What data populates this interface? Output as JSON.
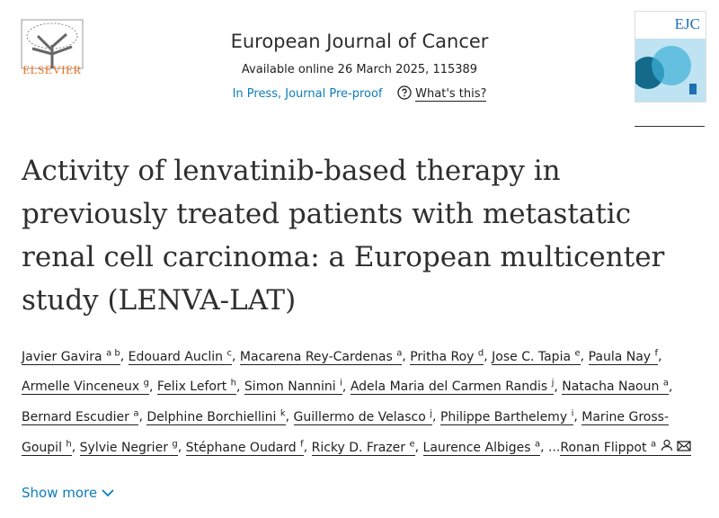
{
  "header": {
    "publisher": "ELSEVIER",
    "journal": "European Journal of Cancer",
    "availability": "Available online 26 March 2025, 115389",
    "status": "In Press, Journal Pre-proof",
    "help": "What's this?",
    "cover_title": "EJC"
  },
  "article": {
    "title": "Activity of lenvatinib-based therapy in previously treated patients with metastatic renal cell carcinoma: a European multicenter study (LENVA-LAT)",
    "separator": ",",
    "ellipsis": "...",
    "authors": [
      {
        "name": "Javier Gavira",
        "affiliations": "a b"
      },
      {
        "name": "Edouard Auclin",
        "affiliations": "c"
      },
      {
        "name": "Macarena Rey-Cardenas",
        "affiliations": "a"
      },
      {
        "name": "Pritha Roy",
        "affiliations": "d"
      },
      {
        "name": "Jose C. Tapia",
        "affiliations": "e"
      },
      {
        "name": "Paula Nay",
        "affiliations": "f"
      },
      {
        "name": "Armelle Vinceneux",
        "affiliations": "g"
      },
      {
        "name": "Felix Lefort",
        "affiliations": "h"
      },
      {
        "name": "Simon Nannini",
        "affiliations": "i"
      },
      {
        "name": "Adela Maria del Carmen Randis",
        "affiliations": "j"
      },
      {
        "name": "Natacha Naoun",
        "affiliations": "a"
      },
      {
        "name": "Bernard Escudier",
        "affiliations": "a"
      },
      {
        "name": "Delphine Borchiellini",
        "affiliations": "k"
      },
      {
        "name": "Guillermo de Velasco",
        "affiliations": "j"
      },
      {
        "name": "Philippe Barthelemy",
        "affiliations": "i"
      },
      {
        "name": "Marine Gross-Goupil",
        "affiliations": "h"
      },
      {
        "name": "Sylvie Negrier",
        "affiliations": "g"
      },
      {
        "name": "Stéphane Oudard",
        "affiliations": "f"
      },
      {
        "name": "Ricky D. Frazer",
        "affiliations": "e"
      },
      {
        "name": "Laurence Albiges",
        "affiliations": "a"
      }
    ],
    "corresponding_author": {
      "name": "Ronan Flippot",
      "affiliations": "a"
    },
    "show_more": "Show more"
  }
}
